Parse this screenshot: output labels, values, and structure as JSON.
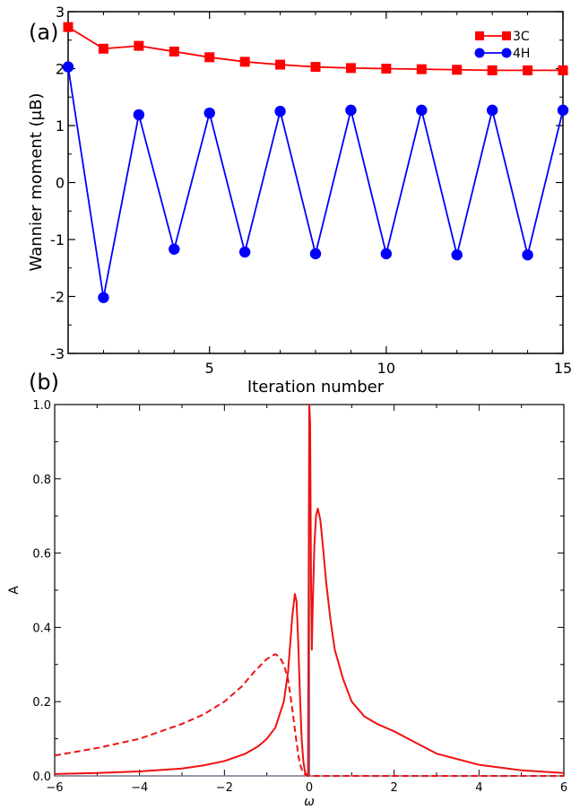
{
  "chart_data": [
    {
      "type": "line",
      "panel_label": "(a)",
      "xlabel": "Iteration number",
      "ylabel": "Wannier moment (μB)",
      "xlim": [
        1,
        15
      ],
      "ylim": [
        -3,
        3
      ],
      "xticks": [
        5,
        10,
        15
      ],
      "yticks": [
        -3,
        -2,
        -1,
        0,
        1,
        2,
        3
      ],
      "legend_position": "top-right",
      "series": [
        {
          "name": "3C",
          "color": "#ff0000",
          "marker": "square",
          "x": [
            1,
            2,
            3,
            4,
            5,
            6,
            7,
            8,
            9,
            10,
            11,
            12,
            13,
            14,
            15
          ],
          "y": [
            2.73,
            2.35,
            2.4,
            2.3,
            2.2,
            2.12,
            2.07,
            2.03,
            2.01,
            2.0,
            1.99,
            1.98,
            1.97,
            1.97,
            1.97
          ]
        },
        {
          "name": "4H",
          "color": "#0000ff",
          "marker": "circle",
          "x": [
            1,
            2,
            3,
            4,
            5,
            6,
            7,
            8,
            9,
            10,
            11,
            12,
            13,
            14,
            15
          ],
          "y": [
            2.03,
            -2.02,
            1.19,
            -1.17,
            1.22,
            -1.22,
            1.25,
            -1.25,
            1.27,
            -1.25,
            1.27,
            -1.27,
            1.27,
            -1.27,
            1.27
          ]
        }
      ]
    },
    {
      "type": "line",
      "panel_label": "(b)",
      "xlabel": "ω",
      "ylabel": "A",
      "xlim": [
        -6,
        6
      ],
      "ylim": [
        0,
        1.0
      ],
      "xticks": [
        -6,
        -4,
        -2,
        0,
        2,
        4,
        6
      ],
      "xtick_labels": [
        "−6",
        "−4",
        "−2",
        "0",
        "2",
        "4",
        "6"
      ],
      "yticks": [
        0,
        0.2,
        0.4,
        0.6,
        0.8,
        1.0
      ],
      "ytick_labels": [
        "0.0",
        "0.2",
        "0.4",
        "0.6",
        "0.8",
        "1.0"
      ],
      "series": [
        {
          "style": "solid",
          "color": "#ee1111",
          "x": [
            -6,
            -5,
            -4,
            -3,
            -2.5,
            -2,
            -1.5,
            -1.2,
            -1.0,
            -0.8,
            -0.6,
            -0.5,
            -0.4,
            -0.34,
            -0.3,
            -0.26,
            -0.22,
            -0.18,
            -0.14,
            -0.1,
            -0.06,
            -0.03,
            0,
            0.02,
            0.04,
            0.06,
            0.08,
            0.12,
            0.16,
            0.2,
            0.26,
            0.32,
            0.4,
            0.5,
            0.6,
            0.8,
            1.0,
            1.3,
            1.6,
            2.0,
            2.5,
            3.0,
            4.0,
            5.0,
            6.0
          ],
          "y": [
            0.005,
            0.008,
            0.012,
            0.02,
            0.028,
            0.04,
            0.06,
            0.08,
            0.1,
            0.13,
            0.2,
            0.28,
            0.43,
            0.49,
            0.47,
            0.36,
            0.22,
            0.1,
            0.04,
            0.01,
            0.002,
            0.0,
            1.0,
            0.95,
            0.55,
            0.34,
            0.45,
            0.62,
            0.7,
            0.72,
            0.69,
            0.62,
            0.52,
            0.42,
            0.34,
            0.26,
            0.2,
            0.16,
            0.14,
            0.12,
            0.09,
            0.06,
            0.03,
            0.015,
            0.008
          ]
        },
        {
          "style": "dashed",
          "color": "#ee1111",
          "x": [
            -6,
            -5,
            -4,
            -3,
            -2.5,
            -2,
            -1.6,
            -1.3,
            -1.0,
            -0.8,
            -0.7,
            -0.6,
            -0.5,
            -0.4,
            -0.3,
            -0.25,
            -0.2,
            -0.15,
            -0.1,
            -0.05,
            0,
            1,
            2,
            3,
            4,
            5,
            6
          ],
          "y": [
            0.055,
            0.075,
            0.1,
            0.14,
            0.165,
            0.2,
            0.24,
            0.28,
            0.315,
            0.328,
            0.32,
            0.3,
            0.26,
            0.18,
            0.09,
            0.05,
            0.025,
            0.01,
            0.004,
            0.001,
            0.0,
            0.0,
            0.0,
            0.0,
            0.0,
            0.0,
            0.0
          ]
        },
        {
          "style": "solid",
          "color": "#777799",
          "x": [
            -6,
            -0.01,
            -0.004,
            0,
            0.004,
            0.01,
            6
          ],
          "y": [
            0,
            0,
            0.6,
            1.0,
            0.6,
            0,
            0
          ]
        }
      ]
    }
  ]
}
